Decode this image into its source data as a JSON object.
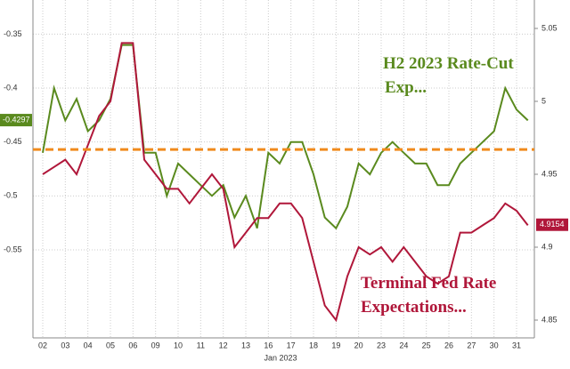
{
  "chart_data": {
    "type": "line",
    "x_axis_label": "Jan 2023",
    "categories": [
      "02",
      null,
      "03",
      null,
      "04",
      null,
      "05",
      null,
      "06",
      null,
      "09",
      null,
      "10",
      null,
      "11",
      null,
      "12",
      null,
      "13",
      null,
      "16",
      null,
      "17",
      null,
      "18",
      null,
      "19",
      null,
      "20",
      null,
      "23",
      null,
      "24",
      null,
      "25",
      null,
      "26",
      null,
      "27",
      null,
      "30",
      null,
      "31",
      null
    ],
    "series": [
      {
        "name": "H2 2023 Rate-Cut Exp...",
        "color": "#5a8a1e",
        "axis": "y",
        "values": [
          -0.46,
          -0.4,
          -0.43,
          -0.41,
          -0.44,
          -0.43,
          -0.41,
          -0.36,
          -0.36,
          -0.46,
          -0.46,
          -0.5,
          -0.47,
          -0.48,
          -0.49,
          -0.5,
          -0.49,
          -0.52,
          -0.5,
          -0.53,
          -0.46,
          -0.47,
          -0.45,
          -0.45,
          -0.48,
          -0.52,
          -0.53,
          -0.51,
          -0.47,
          -0.48,
          -0.46,
          -0.45,
          -0.46,
          -0.47,
          -0.47,
          -0.49,
          -0.49,
          -0.47,
          -0.46,
          -0.45,
          -0.44,
          -0.4,
          -0.42,
          -0.43
        ]
      },
      {
        "name": "Terminal Fed Rate Expectations...",
        "color": "#b0173a",
        "axis": "y2",
        "values": [
          4.95,
          4.955,
          4.96,
          4.95,
          4.97,
          4.99,
          5.0,
          5.04,
          5.04,
          4.96,
          4.95,
          4.94,
          4.94,
          4.93,
          4.94,
          4.95,
          4.94,
          4.9,
          4.91,
          4.92,
          4.92,
          4.93,
          4.93,
          4.92,
          4.89,
          4.86,
          4.85,
          4.88,
          4.9,
          4.895,
          4.9,
          4.89,
          4.9,
          4.89,
          4.88,
          4.875,
          4.88,
          4.91,
          4.91,
          4.915,
          4.92,
          4.93,
          4.925,
          4.915
        ]
      }
    ],
    "ylim": [
      -0.6317,
      -0.3183
    ],
    "yticks": [
      -0.35,
      -0.4,
      -0.45,
      -0.5,
      -0.55
    ],
    "y2lim": [
      4.8378,
      5.0695
    ],
    "y2ticks": [
      4.85,
      4.9,
      4.95,
      5.0,
      5.05
    ],
    "reference_line": {
      "value": -0.457,
      "color": "#f08a1c"
    },
    "y_badge": -0.4297,
    "y2_badge": 4.9154,
    "grid": true
  }
}
